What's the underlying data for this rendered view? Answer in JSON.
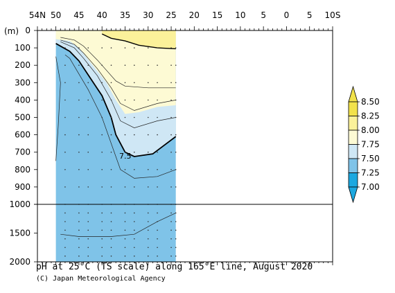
{
  "chart_data": {
    "type": "heatmap",
    "title": "pH at 25°C (TS scale) along 165°E line, August 2020",
    "credit": "(C) Japan Meteorological Agency",
    "ylabel": "(m)",
    "x_ticks": [
      {
        "lat": 54,
        "label": "54N"
      },
      {
        "lat": 50,
        "label": "50"
      },
      {
        "lat": 45,
        "label": "45"
      },
      {
        "lat": 40,
        "label": "40"
      },
      {
        "lat": 35,
        "label": "35"
      },
      {
        "lat": 30,
        "label": "30"
      },
      {
        "lat": 25,
        "label": "25"
      },
      {
        "lat": 20,
        "label": "20"
      },
      {
        "lat": 15,
        "label": "15"
      },
      {
        "lat": 10,
        "label": "10"
      },
      {
        "lat": 5,
        "label": "5"
      },
      {
        "lat": 0,
        "label": "0"
      },
      {
        "lat": -5,
        "label": "5"
      },
      {
        "lat": -10,
        "label": "10S"
      }
    ],
    "x_range": [
      54,
      -10
    ],
    "y_ticks_upper": [
      0,
      100,
      200,
      300,
      400,
      500,
      600,
      700,
      800,
      900,
      1000
    ],
    "y_ticks_lower": [
      1000,
      1500,
      2000
    ],
    "y_range_upper": [
      0,
      1000
    ],
    "y_range_lower": [
      1000,
      2000
    ],
    "colorbar": {
      "labels": [
        "8.50",
        "8.25",
        "8.00",
        "7.75",
        "7.50",
        "7.25",
        "7.00"
      ],
      "bins": [
        {
          "from": 8.25,
          "to": 8.5,
          "color": "#f2e24b"
        },
        {
          "from": 8.0,
          "to": 8.25,
          "color": "#fbf19a"
        },
        {
          "from": 7.75,
          "to": 8.0,
          "color": "#fdfad4"
        },
        {
          "from": 7.5,
          "to": 7.75,
          "color": "#cfe7f5"
        },
        {
          "from": 7.25,
          "to": 7.5,
          "color": "#7fc3e8"
        },
        {
          "from": 7.0,
          "to": 7.25,
          "color": "#1ca8e0"
        }
      ],
      "extend_top_color": "#f2e24b",
      "extend_bottom_color": "#1ca8e0"
    },
    "data_coverage_lat": [
      50,
      24
    ],
    "contour_label": "7.5",
    "regions": [
      {
        "name": "pH 7.25-7.5",
        "color": "#7fc3e8"
      },
      {
        "name": "pH 7.5-7.75",
        "color": "#cfe7f5"
      },
      {
        "name": "pH 7.75-8.0",
        "color": "#fdfad4"
      },
      {
        "name": "pH 8.0-8.25",
        "color": "#fbf19a"
      }
    ],
    "contour_7_75": [
      [
        50,
        50
      ],
      [
        47,
        60
      ],
      [
        45,
        100
      ],
      [
        42,
        200
      ],
      [
        39,
        300
      ],
      [
        37,
        400
      ],
      [
        35,
        480
      ],
      [
        32,
        470
      ],
      [
        28,
        440
      ],
      [
        24,
        430
      ]
    ],
    "contour_7_5": [
      [
        50,
        75
      ],
      [
        47,
        120
      ],
      [
        45,
        175
      ],
      [
        43,
        255
      ],
      [
        40,
        375
      ],
      [
        38,
        500
      ],
      [
        37,
        600
      ],
      [
        35,
        700
      ],
      [
        33,
        725
      ],
      [
        29,
        710
      ],
      [
        24,
        610
      ]
    ],
    "contour_8_0": [
      [
        40,
        20
      ],
      [
        38,
        45
      ],
      [
        35,
        60
      ],
      [
        32,
        85
      ],
      [
        28,
        100
      ],
      [
        24,
        105
      ]
    ],
    "sample_stations_lat": [
      48,
      45,
      43,
      40,
      38,
      35,
      33,
      30,
      28,
      25,
      24
    ]
  }
}
